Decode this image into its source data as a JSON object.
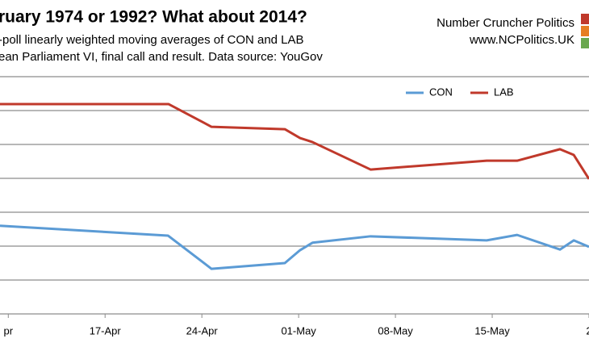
{
  "chart_data": {
    "type": "line",
    "title": "ruary 1974 or 1992? What about 2014?",
    "subtitle_lines": [
      "-poll linearly weighted moving averages of CON and LAB",
      "ean Parliament VI, final call and result. Data source: YouGov"
    ],
    "brand_lines": [
      "Number Cruncher Politics",
      "www.NCPolitics.UK"
    ],
    "series": [
      {
        "name": "CON",
        "color": "#5b9bd5",
        "x": [
          99.4,
          111.55,
          114.7,
          120.0,
          121.1,
          122.0,
          126.2,
          134.6,
          136.8,
          139.9,
          140.9,
          142.0
        ],
        "values": [
          22.6,
          22.31,
          21.33,
          21.5,
          21.88,
          22.1,
          22.29,
          22.17,
          22.33,
          21.9,
          22.17,
          21.98
        ]
      },
      {
        "name": "LAB",
        "color": "#c0392b",
        "x": [
          99.4,
          111.6,
          114.7,
          120.0,
          121.1,
          122.0,
          126.2,
          134.6,
          136.8,
          139.9,
          140.9,
          142.0
        ],
        "values": [
          26.19,
          26.19,
          25.52,
          25.45,
          25.19,
          25.07,
          24.26,
          24.52,
          24.52,
          24.86,
          24.69,
          23.98
        ]
      }
    ],
    "xlim": [
      99.4,
      142.0
    ],
    "xticks": [
      {
        "value": 100,
        "label": "pr"
      },
      {
        "value": 107,
        "label": "17-Apr"
      },
      {
        "value": 114,
        "label": "24-Apr"
      },
      {
        "value": 121,
        "label": "01-May"
      },
      {
        "value": 128,
        "label": "08-May"
      },
      {
        "value": 135,
        "label": "15-May"
      },
      {
        "value": 142,
        "label": "2"
      }
    ],
    "ylim": [
      20,
      27
    ],
    "yticks": [
      20,
      21,
      22,
      23,
      24,
      25,
      26,
      27
    ],
    "grid": true,
    "legend": "top-right"
  }
}
